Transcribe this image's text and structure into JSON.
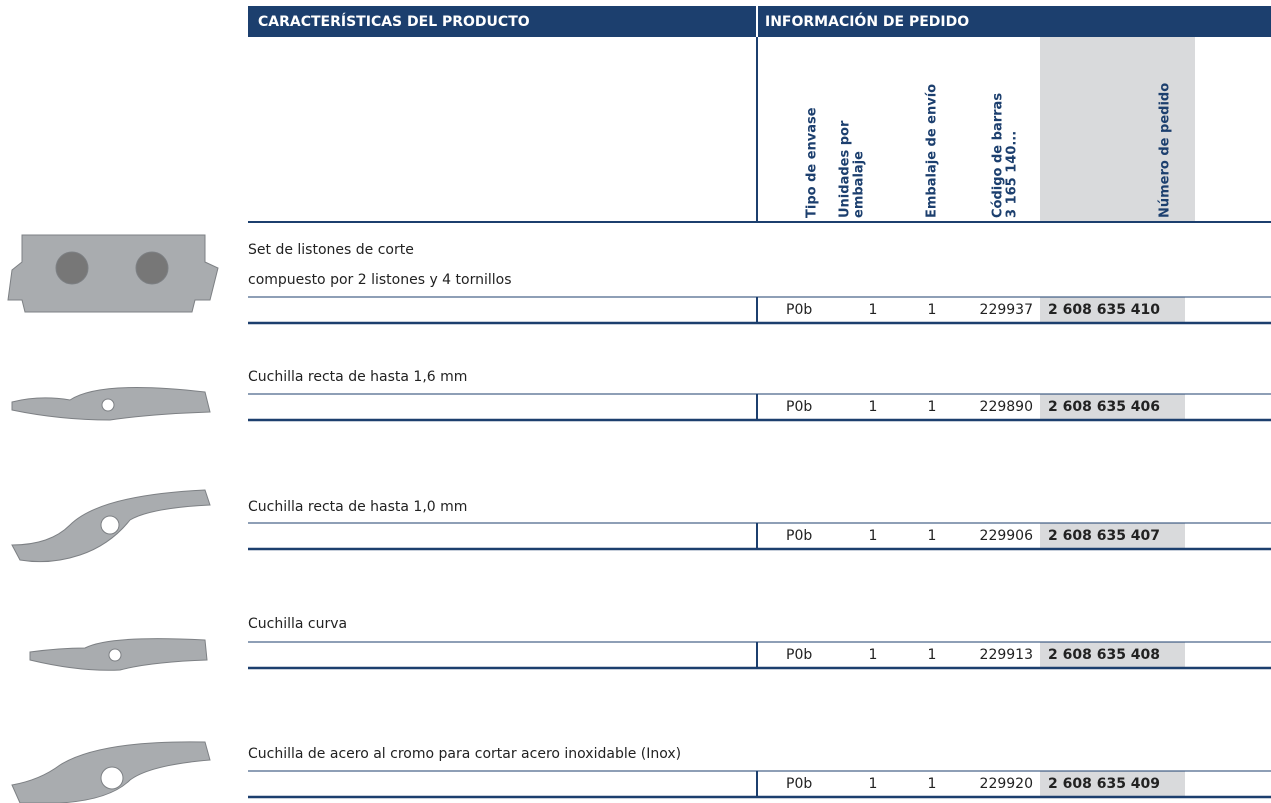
{
  "header": {
    "product": "CARACTERÍSTICAS DEL PRODUCTO",
    "order": "INFORMACIÓN DE PEDIDO"
  },
  "columns": [
    [
      "Tipo de envase"
    ],
    [
      "Unidades por",
      "embalaje"
    ],
    [
      "Embalaje de envío"
    ],
    [
      "Código de barras",
      "3 165 140..."
    ],
    [
      "Número de pedido"
    ]
  ],
  "products": [
    {
      "description": [
        "Set de listones de corte",
        "compuesto por 2 listones y 4 tornillos"
      ],
      "packaging": "P0b",
      "units": "1",
      "shipping": "1",
      "barcode": "229937",
      "order_number": "2 608 635 410"
    },
    {
      "description": [
        "Cuchilla recta de hasta 1,6 mm"
      ],
      "packaging": "P0b",
      "units": "1",
      "shipping": "1",
      "barcode": "229890",
      "order_number": "2 608 635 406"
    },
    {
      "description": [
        "Cuchilla recta de hasta 1,0 mm"
      ],
      "packaging": "P0b",
      "units": "1",
      "shipping": "1",
      "barcode": "229906",
      "order_number": "2 608 635 407"
    },
    {
      "description": [
        "Cuchilla curva"
      ],
      "packaging": "P0b",
      "units": "1",
      "shipping": "1",
      "barcode": "229913",
      "order_number": "2 608 635 408"
    },
    {
      "description": [
        "Cuchilla de acero al cromo para cortar acero inoxidable (Inox)"
      ],
      "packaging": "P0b",
      "units": "1",
      "shipping": "1",
      "barcode": "229920",
      "order_number": "2 608 635 409"
    }
  ]
}
